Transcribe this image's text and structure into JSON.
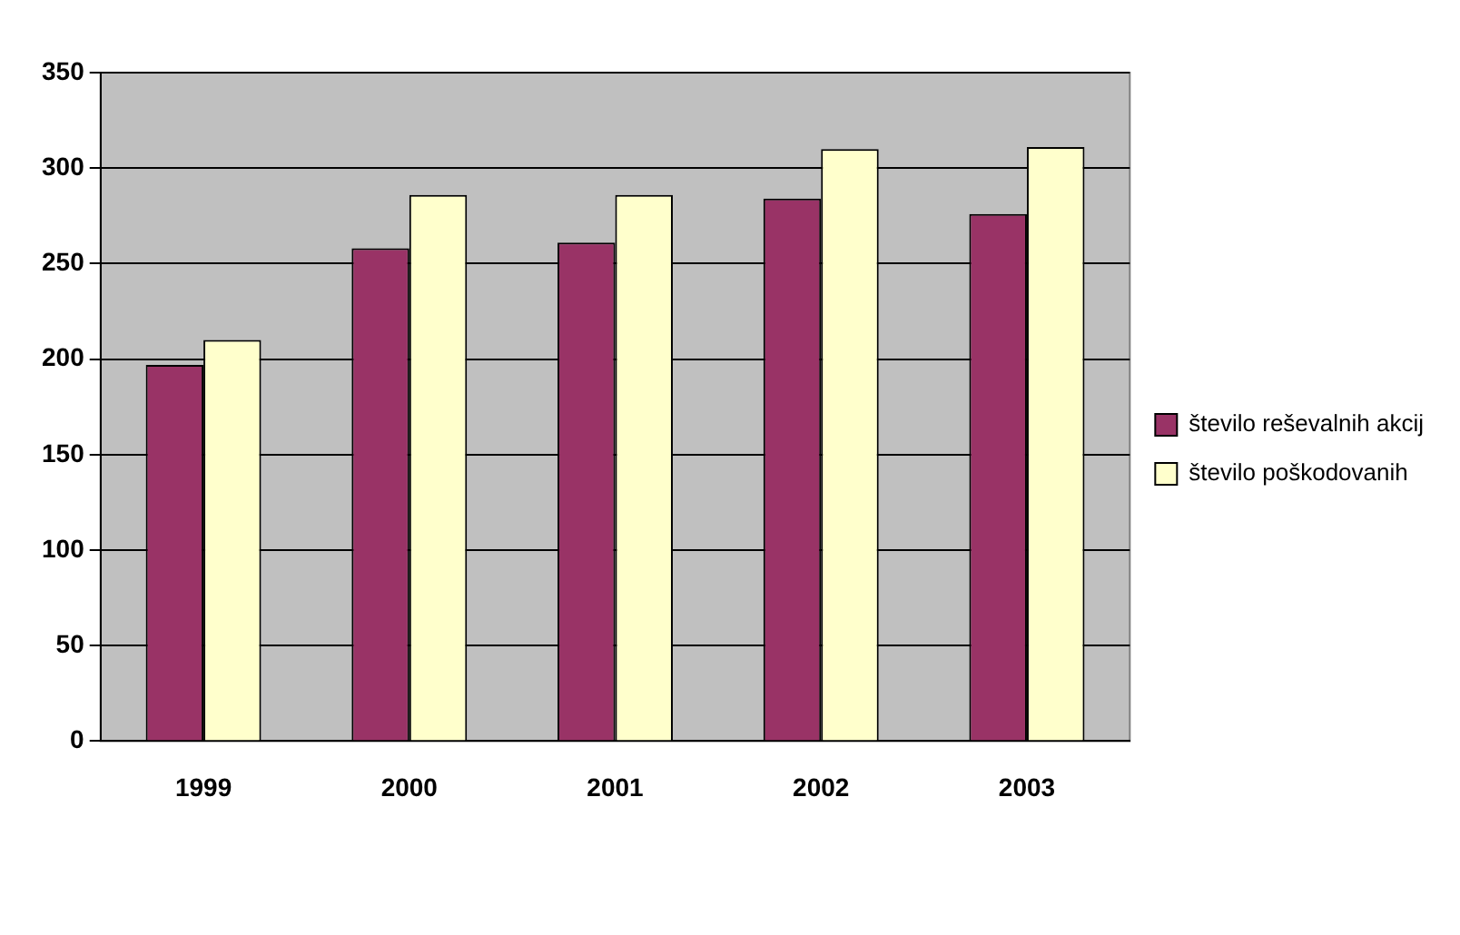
{
  "chart_data": {
    "type": "bar",
    "categories": [
      "1999",
      "2000",
      "2001",
      "2002",
      "2003"
    ],
    "series": [
      {
        "name": "število reševalnih akcij",
        "color": "#993366",
        "values": [
          197,
          258,
          261,
          284,
          276
        ]
      },
      {
        "name": "število poškodovanih",
        "color": "#ffffcc",
        "values": [
          210,
          286,
          286,
          310,
          311
        ]
      }
    ],
    "ylim": [
      0,
      350
    ],
    "yticks": [
      0,
      50,
      100,
      150,
      200,
      250,
      300,
      350
    ],
    "grid": "y",
    "legend": "right"
  }
}
